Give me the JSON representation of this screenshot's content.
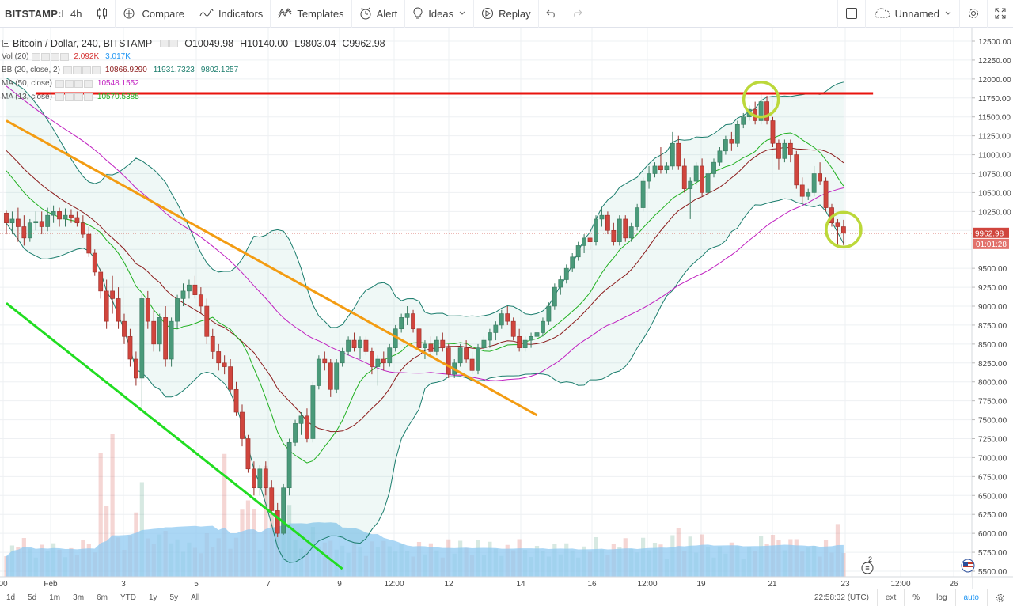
{
  "toolbar": {
    "symbol": "BITSTAMP:B",
    "interval": "4h",
    "compare": "Compare",
    "indicators": "Indicators",
    "templates": "Templates",
    "alert": "Alert",
    "ideas": "Ideas",
    "replay": "Replay",
    "layout_name": "Unnamed"
  },
  "legend": {
    "title": "Bitcoin / Dollar, 240, BITSTAMP",
    "open": "O10049.98",
    "high": "H10140.00",
    "low": "L9803.04",
    "close": "C9962.98",
    "indicators": [
      {
        "name": "Vol (20)",
        "values": [
          "2.092K",
          "3.017K"
        ],
        "colors": [
          "#d32f2f",
          "#2196f3"
        ]
      },
      {
        "name": "BB (20, close, 2)",
        "values": [
          "10866.9290",
          "11931.7323",
          "9802.1257"
        ],
        "colors": [
          "#8b1a1a",
          "#1b7d6d",
          "#1b7d6d"
        ]
      },
      {
        "name": "MA (50, close)",
        "values": [
          "10548.1552"
        ],
        "colors": [
          "#c020c0"
        ]
      },
      {
        "name": "MA (13, close)",
        "values": [
          "10570.5385"
        ],
        "colors": [
          "#20b020"
        ]
      }
    ]
  },
  "price_axis": {
    "ticks": [
      "12500.00",
      "12250.00",
      "12000.00",
      "11750.00",
      "11500.00",
      "11250.00",
      "11000.00",
      "10750.00",
      "10500.00",
      "10250.00",
      "9500.00",
      "9250.00",
      "9000.00",
      "8750.00",
      "8500.00",
      "8250.00",
      "8000.00",
      "7750.00",
      "7500.00",
      "7250.00",
      "7000.00",
      "6750.00",
      "6500.00",
      "6250.00",
      "6000.00",
      "5750.00",
      "5500.00"
    ],
    "last_price": "9962.98",
    "countdown": "01:01:28"
  },
  "time_axis": {
    "ticks": [
      "00",
      "Feb",
      "3",
      "5",
      "7",
      "9",
      "12:00",
      "12",
      "14",
      "16",
      "12:00",
      "19",
      "21",
      "23",
      "12:00",
      "26"
    ]
  },
  "bottombar": {
    "ranges": [
      "1d",
      "5d",
      "1m",
      "3m",
      "6m",
      "YTD",
      "1y",
      "5y",
      "All"
    ],
    "clock": "22:58:32 (UTC)",
    "ext": "ext",
    "percent": "%",
    "log": "log",
    "auto": "auto"
  },
  "events_badge": "2",
  "colors": {
    "up": "#4a9a7a",
    "down": "#d0453d",
    "bb_band": "#1b7d6d",
    "bb_basis": "#8b1a1a",
    "ma50": "#c020c0",
    "ma13": "#20b020",
    "resistance": "#e8130e",
    "downtrend": "#f39c12",
    "channel": "#21dd21",
    "highlight_circle": "#bcd83a",
    "volume_area": "#8fcaf2"
  },
  "chart_data": {
    "type": "candlestick",
    "y_range": [
      5430,
      12600
    ],
    "candles": [
      [
        0,
        10230,
        10260,
        9950,
        10100
      ],
      [
        1,
        10100,
        10250,
        9950,
        10150
      ],
      [
        2,
        10150,
        10300,
        9850,
        10050
      ],
      [
        3,
        10050,
        10200,
        9800,
        9900
      ],
      [
        4,
        9900,
        10150,
        9850,
        10100
      ],
      [
        5,
        10100,
        10250,
        10000,
        10120
      ],
      [
        6,
        10120,
        10250,
        9950,
        10050
      ],
      [
        7,
        10050,
        10300,
        9990,
        10200
      ],
      [
        8,
        10200,
        10330,
        10100,
        10250
      ],
      [
        9,
        10250,
        10300,
        10050,
        10150
      ],
      [
        10,
        10150,
        10290,
        10050,
        10200
      ],
      [
        11,
        10200,
        10280,
        10100,
        10170
      ],
      [
        12,
        10170,
        10250,
        10050,
        10100
      ],
      [
        13,
        10100,
        10200,
        9900,
        9950
      ],
      [
        14,
        9950,
        10050,
        9650,
        9700
      ],
      [
        15,
        9700,
        9750,
        9400,
        9450
      ],
      [
        16,
        9450,
        9500,
        9100,
        9200
      ],
      [
        17,
        9200,
        9350,
        8700,
        8800
      ],
      [
        18,
        9200,
        9400,
        8900,
        9100
      ],
      [
        19,
        9100,
        9250,
        8700,
        8800
      ],
      [
        20,
        8800,
        8900,
        8500,
        8600
      ],
      [
        21,
        8600,
        8700,
        8200,
        8300
      ],
      [
        22,
        8300,
        8400,
        7950,
        8050
      ],
      [
        23,
        8050,
        9150,
        7650,
        9100
      ],
      [
        24,
        9100,
        9200,
        8700,
        8800
      ],
      [
        25,
        8800,
        8950,
        8400,
        8500
      ],
      [
        26,
        8500,
        8900,
        8400,
        8850
      ],
      [
        27,
        8850,
        9000,
        8200,
        8300
      ],
      [
        28,
        8300,
        8850,
        8200,
        8800
      ],
      [
        29,
        8800,
        9150,
        8700,
        9100
      ],
      [
        30,
        9100,
        9300,
        9000,
        9200
      ],
      [
        31,
        9200,
        9350,
        9100,
        9280
      ],
      [
        32,
        9280,
        9400,
        9100,
        9150
      ],
      [
        33,
        9150,
        9250,
        8900,
        9000
      ],
      [
        34,
        9000,
        9100,
        8500,
        8600
      ],
      [
        35,
        8600,
        8700,
        8300,
        8400
      ],
      [
        36,
        8400,
        8500,
        8150,
        8250
      ],
      [
        37,
        8250,
        8350,
        8100,
        8200
      ],
      [
        38,
        8200,
        8300,
        7850,
        7900
      ],
      [
        39,
        7900,
        8000,
        7550,
        7600
      ],
      [
        40,
        7600,
        7700,
        7150,
        7250
      ],
      [
        41,
        7250,
        7300,
        6800,
        6850
      ],
      [
        42,
        6850,
        6950,
        6500,
        6600
      ],
      [
        43,
        6600,
        6900,
        6500,
        6850
      ],
      [
        44,
        6850,
        6950,
        6500,
        6600
      ],
      [
        45,
        6600,
        6700,
        6250,
        6300
      ],
      [
        46,
        6300,
        6400,
        5950,
        6000
      ],
      [
        47,
        6000,
        6650,
        5980,
        6600
      ],
      [
        48,
        6600,
        7250,
        6500,
        7200
      ],
      [
        49,
        7200,
        7500,
        7150,
        7450
      ],
      [
        50,
        7450,
        7600,
        7300,
        7550
      ],
      [
        51,
        7550,
        7650,
        7200,
        7250
      ],
      [
        52,
        7250,
        8000,
        7200,
        7950
      ],
      [
        53,
        7950,
        8350,
        7900,
        8300
      ],
      [
        54,
        8300,
        8400,
        8150,
        8250
      ],
      [
        55,
        8250,
        8300,
        7800,
        7900
      ],
      [
        56,
        7900,
        8300,
        7850,
        8250
      ],
      [
        57,
        8250,
        8450,
        8200,
        8400
      ],
      [
        58,
        8400,
        8600,
        8350,
        8550
      ],
      [
        59,
        8550,
        8650,
        8400,
        8450
      ],
      [
        60,
        8450,
        8600,
        8300,
        8550
      ],
      [
        61,
        8550,
        8600,
        8350,
        8400
      ],
      [
        62,
        8400,
        8450,
        8100,
        8200
      ],
      [
        63,
        8200,
        8350,
        7950,
        8300
      ],
      [
        64,
        8300,
        8400,
        8150,
        8250
      ],
      [
        65,
        8250,
        8500,
        8200,
        8450
      ],
      [
        66,
        8450,
        8750,
        8400,
        8700
      ],
      [
        67,
        8700,
        8900,
        8650,
        8850
      ],
      [
        68,
        8850,
        9000,
        8750,
        8900
      ],
      [
        69,
        8900,
        8950,
        8650,
        8700
      ],
      [
        70,
        8700,
        8800,
        8400,
        8450
      ],
      [
        71,
        8450,
        8550,
        8300,
        8500
      ],
      [
        72,
        8500,
        8600,
        8350,
        8400
      ],
      [
        73,
        8400,
        8600,
        8350,
        8550
      ],
      [
        74,
        8550,
        8650,
        8400,
        8450
      ],
      [
        75,
        8450,
        8500,
        8050,
        8100
      ],
      [
        76,
        8100,
        8300,
        8050,
        8250
      ],
      [
        77,
        8250,
        8500,
        8200,
        8450
      ],
      [
        78,
        8450,
        8550,
        8250,
        8300
      ],
      [
        79,
        8300,
        8400,
        8100,
        8150
      ],
      [
        80,
        8150,
        8500,
        8100,
        8450
      ],
      [
        81,
        8450,
        8600,
        8400,
        8550
      ],
      [
        82,
        8550,
        8700,
        8450,
        8650
      ],
      [
        83,
        8650,
        8800,
        8550,
        8750
      ],
      [
        84,
        8750,
        8950,
        8700,
        8900
      ],
      [
        85,
        8900,
        9000,
        8750,
        8800
      ],
      [
        86,
        8800,
        8850,
        8550,
        8600
      ],
      [
        87,
        8600,
        8700,
        8400,
        8450
      ],
      [
        88,
        8450,
        8600,
        8400,
        8550
      ],
      [
        89,
        8550,
        8650,
        8450,
        8600
      ],
      [
        90,
        8600,
        8700,
        8500,
        8650
      ],
      [
        91,
        8650,
        8850,
        8600,
        8800
      ],
      [
        92,
        8800,
        9050,
        8750,
        9000
      ],
      [
        93,
        9000,
        9300,
        8950,
        9250
      ],
      [
        94,
        9250,
        9400,
        9150,
        9350
      ],
      [
        95,
        9350,
        9550,
        9300,
        9500
      ],
      [
        96,
        9500,
        9700,
        9450,
        9650
      ],
      [
        97,
        9650,
        9850,
        9600,
        9800
      ],
      [
        98,
        9800,
        9950,
        9700,
        9900
      ],
      [
        99,
        9900,
        10050,
        9750,
        9850
      ],
      [
        100,
        9850,
        10200,
        9800,
        10150
      ],
      [
        101,
        10150,
        10300,
        10050,
        10200
      ],
      [
        102,
        10200,
        10250,
        9950,
        10000
      ],
      [
        103,
        10000,
        10100,
        9800,
        9850
      ],
      [
        104,
        9850,
        10200,
        9800,
        10150
      ],
      [
        105,
        10150,
        10200,
        9850,
        9900
      ],
      [
        106,
        9900,
        10100,
        9850,
        10050
      ],
      [
        107,
        10050,
        10350,
        10000,
        10300
      ],
      [
        108,
        10300,
        10700,
        10250,
        10650
      ],
      [
        109,
        10650,
        10850,
        10550,
        10750
      ],
      [
        110,
        10750,
        10900,
        10700,
        10850
      ],
      [
        111,
        10850,
        11100,
        10750,
        10800
      ],
      [
        112,
        10800,
        10900,
        10750,
        10850
      ],
      [
        113,
        10850,
        11300,
        10800,
        11150
      ],
      [
        114,
        11150,
        11250,
        10800,
        10850
      ],
      [
        115,
        10850,
        10950,
        10500,
        10550
      ],
      [
        116,
        10550,
        10700,
        10150,
        10650
      ],
      [
        117,
        10650,
        10900,
        10600,
        10850
      ],
      [
        118,
        10850,
        10950,
        10450,
        10500
      ],
      [
        119,
        10500,
        10800,
        10450,
        10750
      ],
      [
        120,
        10750,
        10950,
        10700,
        10900
      ],
      [
        121,
        10900,
        11100,
        10850,
        11050
      ],
      [
        122,
        11050,
        11250,
        11000,
        11200
      ],
      [
        123,
        11200,
        11300,
        11050,
        11150
      ],
      [
        124,
        11150,
        11450,
        11100,
        11400
      ],
      [
        125,
        11400,
        11550,
        11350,
        11500
      ],
      [
        126,
        11500,
        11650,
        11450,
        11600
      ],
      [
        127,
        11600,
        11700,
        11400,
        11450
      ],
      [
        128,
        11450,
        11800,
        11400,
        11700
      ],
      [
        129,
        11700,
        11780,
        11400,
        11450
      ],
      [
        130,
        11450,
        11500,
        11100,
        11150
      ],
      [
        131,
        11150,
        11200,
        10800,
        10950
      ],
      [
        132,
        10950,
        11200,
        10900,
        11150
      ],
      [
        133,
        11150,
        11200,
        10900,
        11000
      ],
      [
        134,
        11000,
        11050,
        10550,
        10600
      ],
      [
        135,
        10600,
        10700,
        10350,
        10450
      ],
      [
        136,
        10450,
        10550,
        10400,
        10500
      ],
      [
        137,
        10500,
        10850,
        10450,
        10750
      ],
      [
        138,
        10750,
        10900,
        10600,
        10650
      ],
      [
        139,
        10650,
        10700,
        10250,
        10300
      ],
      [
        140,
        10300,
        10350,
        10050,
        10100
      ],
      [
        141,
        10100,
        10150,
        9803,
        10049.98
      ],
      [
        142,
        10049.98,
        10140,
        9803.04,
        9962.98
      ]
    ],
    "annotations": {
      "resistance_line": {
        "from": [
          5,
          11810
        ],
        "to": [
          147,
          11810
        ]
      },
      "downtrend_line": {
        "from": [
          0,
          11450
        ],
        "to": [
          90,
          7560
        ]
      },
      "channel_line": {
        "from": [
          0,
          9040
        ],
        "to": [
          57,
          5530
        ]
      },
      "circles": [
        [
          128,
          11730
        ],
        [
          142,
          10010
        ]
      ]
    }
  }
}
